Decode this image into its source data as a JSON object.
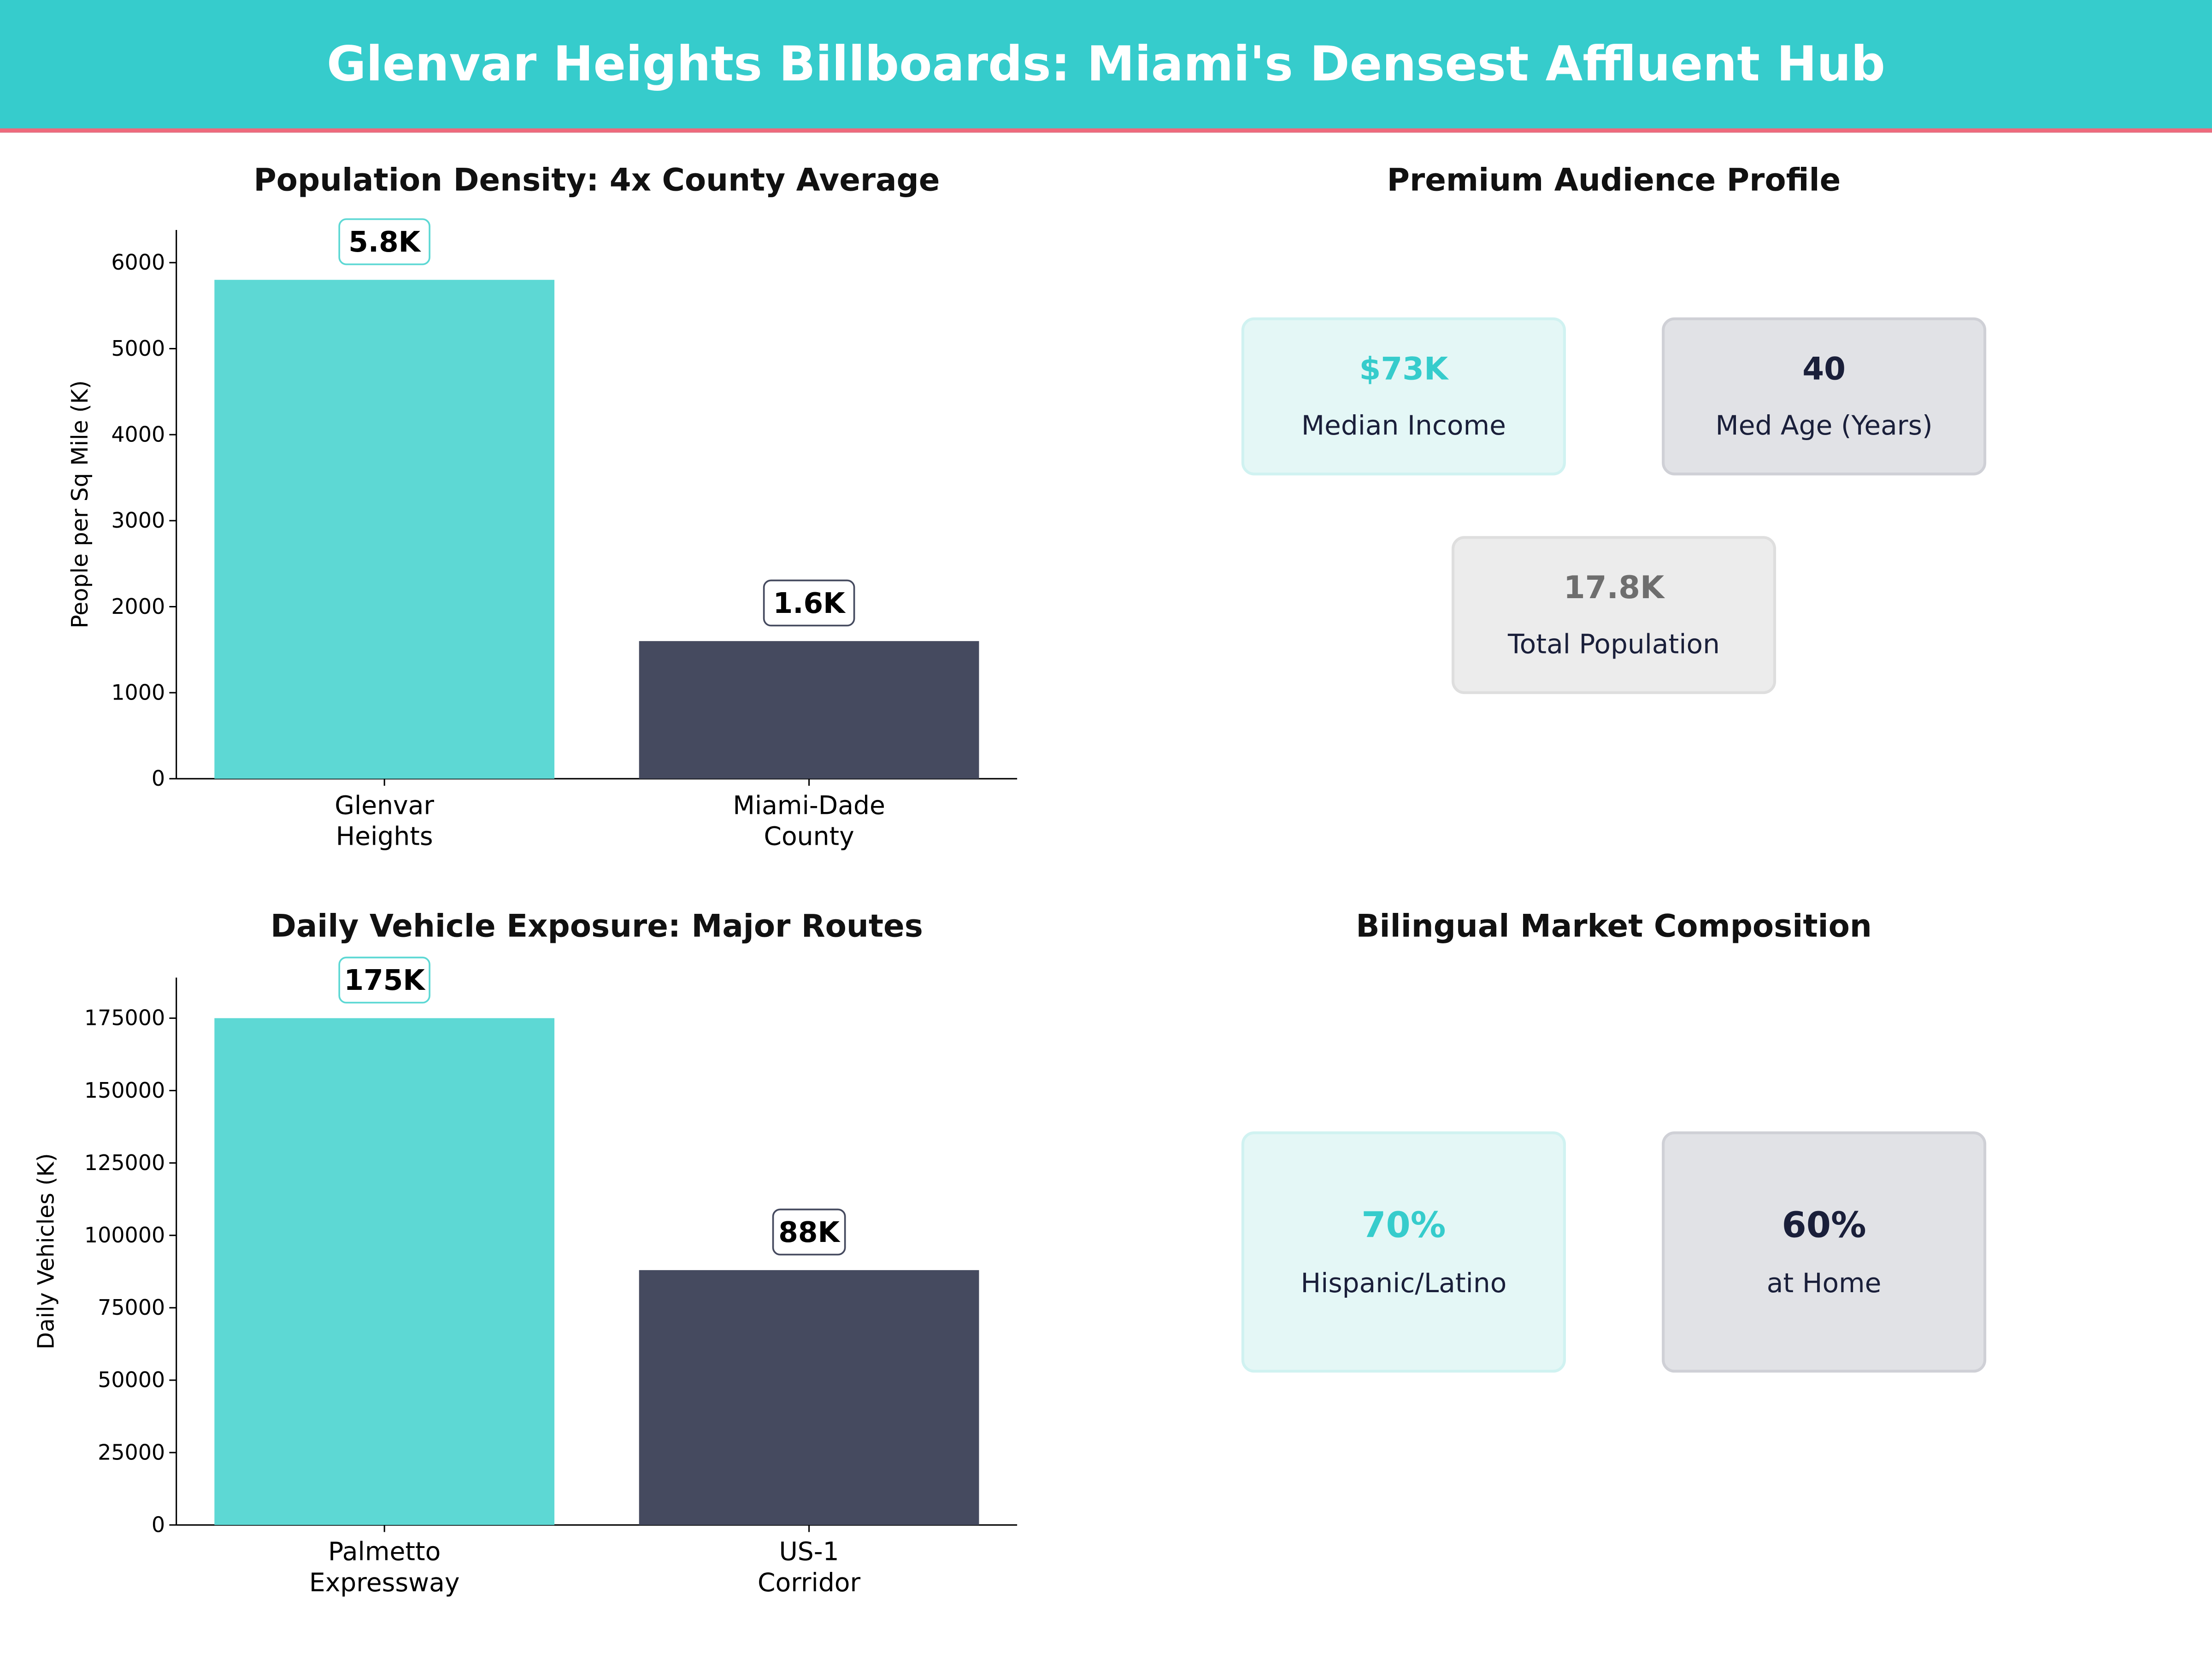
{
  "header": {
    "title": "Glenvar Heights Billboards: Miami's Densest Affluent Hub"
  },
  "colors": {
    "teal": "#5dd8d4",
    "navy": "#454a5f",
    "banner": "#36cccc",
    "accent_line": "#ee6a7c"
  },
  "chart_data": [
    {
      "type": "bar",
      "title": "Population Density: 4x County Average",
      "xlabel": "",
      "ylabel": "People per Sq Mile (K)",
      "categories": [
        "Glenvar\nHeights",
        "Miami-Dade\nCounty"
      ],
      "values": [
        5800,
        1600
      ],
      "data_labels": [
        "5.8K",
        "1.6K"
      ],
      "yticks": [
        0,
        1000,
        2000,
        3000,
        4000,
        5000,
        6000
      ],
      "ylim": [
        0,
        6380
      ],
      "grid": false
    },
    {
      "type": "bar",
      "title": "Daily Vehicle Exposure: Major Routes",
      "xlabel": "",
      "ylabel": "Daily Vehicles (K)",
      "categories": [
        "Palmetto\nExpressway",
        "US-1\nCorridor"
      ],
      "values": [
        175000,
        88000
      ],
      "data_labels": [
        "175K",
        "88K"
      ],
      "yticks": [
        0,
        25000,
        50000,
        75000,
        100000,
        125000,
        150000,
        175000
      ],
      "ylim": [
        0,
        189000
      ],
      "grid": false
    }
  ],
  "audience": {
    "title": "Premium Audience Profile",
    "cards": [
      {
        "value": "$73K",
        "label": "Median Income"
      },
      {
        "value": "40",
        "label": "Med Age (Years)"
      },
      {
        "value": "17.8K",
        "label": "Total Population"
      }
    ]
  },
  "bilingual": {
    "title": "Bilingual Market Composition",
    "cards": [
      {
        "value": "70%",
        "label": "Hispanic/Latino"
      },
      {
        "value": "60%",
        "label": "at Home"
      }
    ]
  }
}
